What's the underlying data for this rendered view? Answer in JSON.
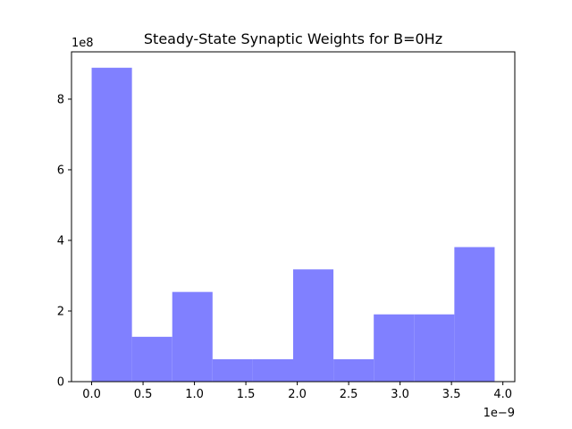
{
  "chart_data": {
    "type": "histogram",
    "title": "Steady-State Synaptic Weights for B=0Hz",
    "xlabel": "",
    "ylabel": "",
    "x_offset_label": "1e−9",
    "y_offset_label": "1e8",
    "xlim": [
      -0.196,
      4.116
    ],
    "ylim": [
      0,
      9.34
    ],
    "x_ticks": [
      0.0,
      0.5,
      1.0,
      1.5,
      2.0,
      2.5,
      3.0,
      3.5,
      4.0
    ],
    "x_tick_labels": [
      "0.0",
      "0.5",
      "1.0",
      "1.5",
      "2.0",
      "2.5",
      "3.0",
      "3.5",
      "4.0"
    ],
    "y_ticks": [
      0,
      2,
      4,
      6,
      8
    ],
    "y_tick_labels": [
      "0",
      "2",
      "4",
      "6",
      "8"
    ],
    "bin_edges": [
      0.0,
      0.392,
      0.784,
      1.176,
      1.568,
      1.96,
      2.352,
      2.744,
      3.136,
      3.528,
      3.92
    ],
    "values": [
      8.89,
      1.27,
      2.54,
      0.635,
      0.635,
      3.18,
      0.635,
      1.905,
      1.905,
      3.81
    ],
    "bar_color": "#8080ff",
    "grid": false,
    "legend": "none"
  }
}
